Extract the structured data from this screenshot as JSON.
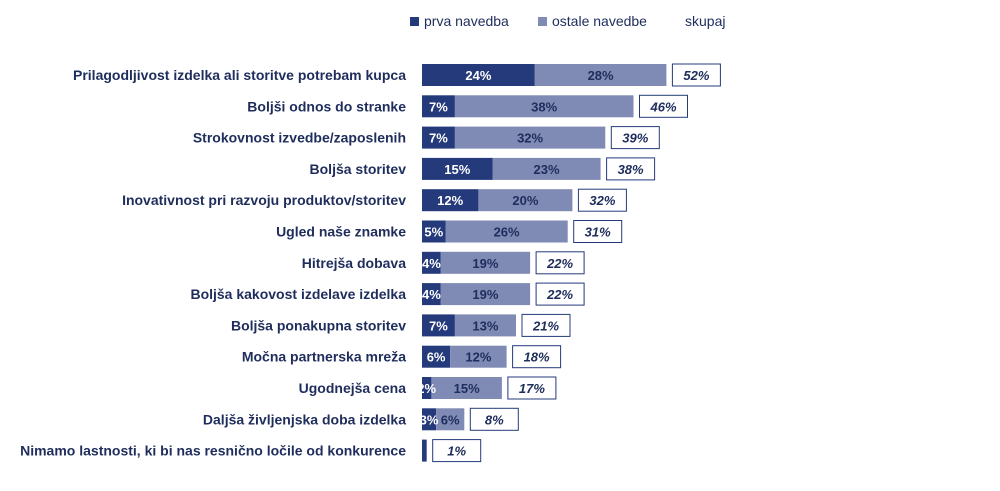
{
  "chart_data": {
    "type": "bar",
    "orientation": "horizontal",
    "stacked": true,
    "legend_position": "top",
    "categories": [
      "Prilagodljivost izdelka ali storitve potrebam kupca",
      "Boljši odnos do stranke",
      "Strokovnost izvedbe/zaposlenih",
      "Boljša storitev",
      "Inovativnost pri razvoju produktov/storitev",
      "Ugled naše znamke",
      "Hitrejša dobava",
      "Boljša kakovost izdelave izdelka",
      "Boljša ponakupna storitev",
      "Močna partnerska mreža",
      "Ugodnejša cena",
      "Daljša življenjska doba izdelka",
      "Nimamo lastnosti, ki bi nas resnično ločile od konkurence"
    ],
    "series": [
      {
        "name": "prva navedba",
        "color": "#243a7a",
        "values": [
          24,
          7,
          7,
          15,
          12,
          5,
          4,
          4,
          7,
          6,
          2,
          3,
          1
        ],
        "labels": [
          "24%",
          "7%",
          "7%",
          "15%",
          "12%",
          "5%",
          "4%",
          "4%",
          "7%",
          "6%",
          "2%",
          "3%",
          ""
        ]
      },
      {
        "name": "ostale navedbe",
        "color": "#7f8ab5",
        "values": [
          28,
          38,
          32,
          23,
          20,
          26,
          19,
          19,
          13,
          12,
          15,
          6,
          0
        ],
        "labels": [
          "28%",
          "38%",
          "32%",
          "23%",
          "20%",
          "26%",
          "19%",
          "19%",
          "13%",
          "12%",
          "15%",
          "6%",
          ""
        ]
      }
    ],
    "totals": {
      "name": "skupaj",
      "values": [
        52,
        46,
        39,
        38,
        32,
        31,
        22,
        22,
        21,
        18,
        17,
        8,
        1
      ],
      "labels": [
        "52%",
        "46%",
        "39%",
        "38%",
        "32%",
        "31%",
        "22%",
        "22%",
        "21%",
        "18%",
        "17%",
        "8%",
        "1%"
      ]
    }
  }
}
